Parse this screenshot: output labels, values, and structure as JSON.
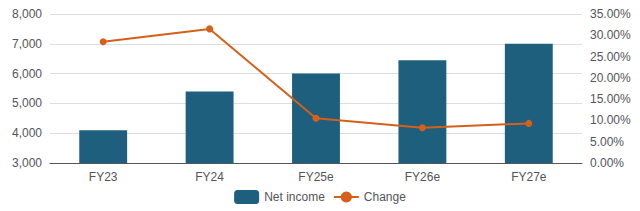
{
  "chart_data": {
    "type": "bar",
    "categories": [
      "FY23",
      "FY24",
      "FY25e",
      "FY26e",
      "FY27e"
    ],
    "series": [
      {
        "name": "Net income",
        "type": "bar",
        "color": "#1d5f7c",
        "values": [
          4100,
          5400,
          6000,
          6450,
          7000
        ]
      },
      {
        "name": "Change",
        "type": "line",
        "color": "#d4601a",
        "marker": "circle",
        "axis": "y2",
        "values": [
          0.285,
          0.315,
          0.105,
          0.083,
          0.093
        ]
      }
    ],
    "ylim": [
      3000,
      8000
    ],
    "yticks": [
      {
        "value": 3000,
        "label": "3,000"
      },
      {
        "value": 4000,
        "label": "4,000"
      },
      {
        "value": 5000,
        "label": "5,000"
      },
      {
        "value": 6000,
        "label": "6,000"
      },
      {
        "value": 7000,
        "label": "7,000"
      },
      {
        "value": 8000,
        "label": "8,000"
      }
    ],
    "y2lim": [
      0.0,
      0.35
    ],
    "y2ticks": [
      {
        "value": 0.0,
        "label": "0.00%"
      },
      {
        "value": 0.05,
        "label": "5.00%"
      },
      {
        "value": 0.1,
        "label": "10.00%"
      },
      {
        "value": 0.15,
        "label": "15.00%"
      },
      {
        "value": 0.2,
        "label": "20.00%"
      },
      {
        "value": 0.25,
        "label": "25.00%"
      },
      {
        "value": 0.3,
        "label": "30.00%"
      },
      {
        "value": 0.35,
        "label": "35.00%"
      }
    ],
    "grid": true,
    "legend": "bottom"
  }
}
